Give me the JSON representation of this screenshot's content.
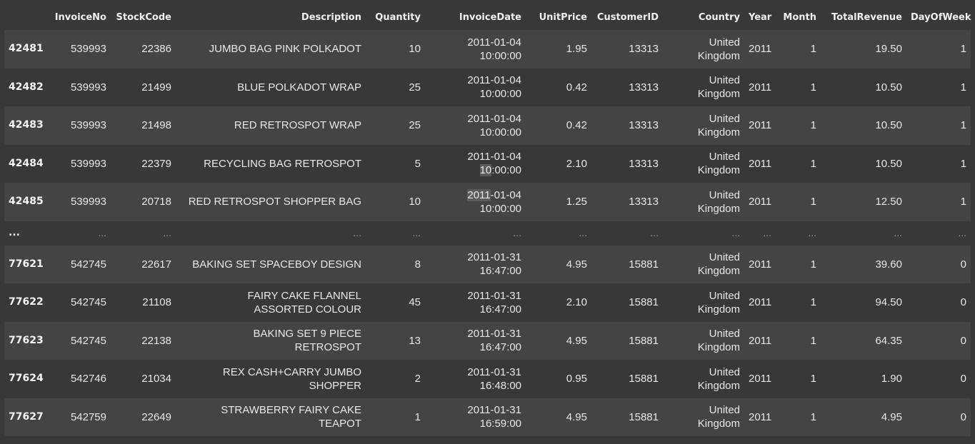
{
  "columns": [
    "",
    "InvoiceNo",
    "StockCode",
    "Description",
    "Quantity",
    "InvoiceDate",
    "UnitPrice",
    "CustomerID",
    "Country",
    "Year",
    "Month",
    "TotalRevenue",
    "DayOfWeek"
  ],
  "rows": [
    {
      "idx": "42481",
      "invoice": "539993",
      "stock": "22386",
      "desc": "JUMBO BAG PINK POLKADOT",
      "qty": "10",
      "date": "2011-01-04",
      "time": "10:00:00",
      "price": "1.95",
      "cust": "13313",
      "country1": "United",
      "country2": "Kingdom",
      "year": "2011",
      "month": "1",
      "rev": "19.50",
      "dow": "1"
    },
    {
      "idx": "42482",
      "invoice": "539993",
      "stock": "21499",
      "desc": "BLUE POLKADOT WRAP",
      "qty": "25",
      "date": "2011-01-04",
      "time": "10:00:00",
      "price": "0.42",
      "cust": "13313",
      "country1": "United",
      "country2": "Kingdom",
      "year": "2011",
      "month": "1",
      "rev": "10.50",
      "dow": "1"
    },
    {
      "idx": "42483",
      "invoice": "539993",
      "stock": "21498",
      "desc": "RED RETROSPOT WRAP",
      "qty": "25",
      "date": "2011-01-04",
      "time": "10:00:00",
      "price": "0.42",
      "cust": "13313",
      "country1": "United",
      "country2": "Kingdom",
      "year": "2011",
      "month": "1",
      "rev": "10.50",
      "dow": "1"
    },
    {
      "idx": "42484",
      "invoice": "539993",
      "stock": "22379",
      "desc": "RECYCLING BAG RETROSPOT",
      "qty": "5",
      "date": "2011-01-04",
      "time": "10:00:00",
      "price": "2.10",
      "cust": "13313",
      "country1": "United",
      "country2": "Kingdom",
      "year": "2011",
      "month": "1",
      "rev": "10.50",
      "dow": "1"
    },
    {
      "idx": "42485",
      "invoice": "539993",
      "stock": "20718",
      "desc": "RED RETROSPOT SHOPPER BAG",
      "qty": "10",
      "date": "2011-01-04",
      "time": "10:00:00",
      "price": "1.25",
      "cust": "13313",
      "country1": "United",
      "country2": "Kingdom",
      "year": "2011",
      "month": "1",
      "rev": "12.50",
      "dow": "1"
    },
    {
      "ellipsis": true
    },
    {
      "idx": "77621",
      "invoice": "542745",
      "stock": "22617",
      "desc": "BAKING SET SPACEBOY DESIGN",
      "qty": "8",
      "date": "2011-01-31",
      "time": "16:47:00",
      "price": "4.95",
      "cust": "15881",
      "country1": "United",
      "country2": "Kingdom",
      "year": "2011",
      "month": "1",
      "rev": "39.60",
      "dow": "0"
    },
    {
      "idx": "77622",
      "invoice": "542745",
      "stock": "21108",
      "desc": "FAIRY CAKE FLANNEL ASSORTED COLOUR",
      "desc1": "FAIRY CAKE FLANNEL",
      "desc2": "ASSORTED COLOUR",
      "qty": "45",
      "date": "2011-01-31",
      "time": "16:47:00",
      "price": "2.10",
      "cust": "15881",
      "country1": "United",
      "country2": "Kingdom",
      "year": "2011",
      "month": "1",
      "rev": "94.50",
      "dow": "0"
    },
    {
      "idx": "77623",
      "invoice": "542745",
      "stock": "22138",
      "desc": "BAKING SET 9 PIECE RETROSPOT",
      "desc1": "BAKING SET 9 PIECE",
      "desc2": "RETROSPOT",
      "qty": "13",
      "date": "2011-01-31",
      "time": "16:47:00",
      "price": "4.95",
      "cust": "15881",
      "country1": "United",
      "country2": "Kingdom",
      "year": "2011",
      "month": "1",
      "rev": "64.35",
      "dow": "0"
    },
    {
      "idx": "77624",
      "invoice": "542746",
      "stock": "21034",
      "desc": "REX CASH+CARRY JUMBO SHOPPER",
      "desc1": "REX CASH+CARRY JUMBO",
      "desc2": "SHOPPER",
      "qty": "2",
      "date": "2011-01-31",
      "time": "16:48:00",
      "price": "0.95",
      "cust": "15881",
      "country1": "United",
      "country2": "Kingdom",
      "year": "2011",
      "month": "1",
      "rev": "1.90",
      "dow": "0"
    },
    {
      "idx": "77627",
      "invoice": "542759",
      "stock": "22649",
      "desc": "STRAWBERRY FAIRY CAKE TEAPOT",
      "desc1": "STRAWBERRY FAIRY CAKE",
      "desc2": "TEAPOT",
      "qty": "1",
      "date": "2011-01-31",
      "time": "16:59:00",
      "price": "4.95",
      "cust": "15881",
      "country1": "United",
      "country2": "Kingdom",
      "year": "2011",
      "month": "1",
      "rev": "4.95",
      "dow": "0"
    }
  ],
  "ellipsis": "..."
}
